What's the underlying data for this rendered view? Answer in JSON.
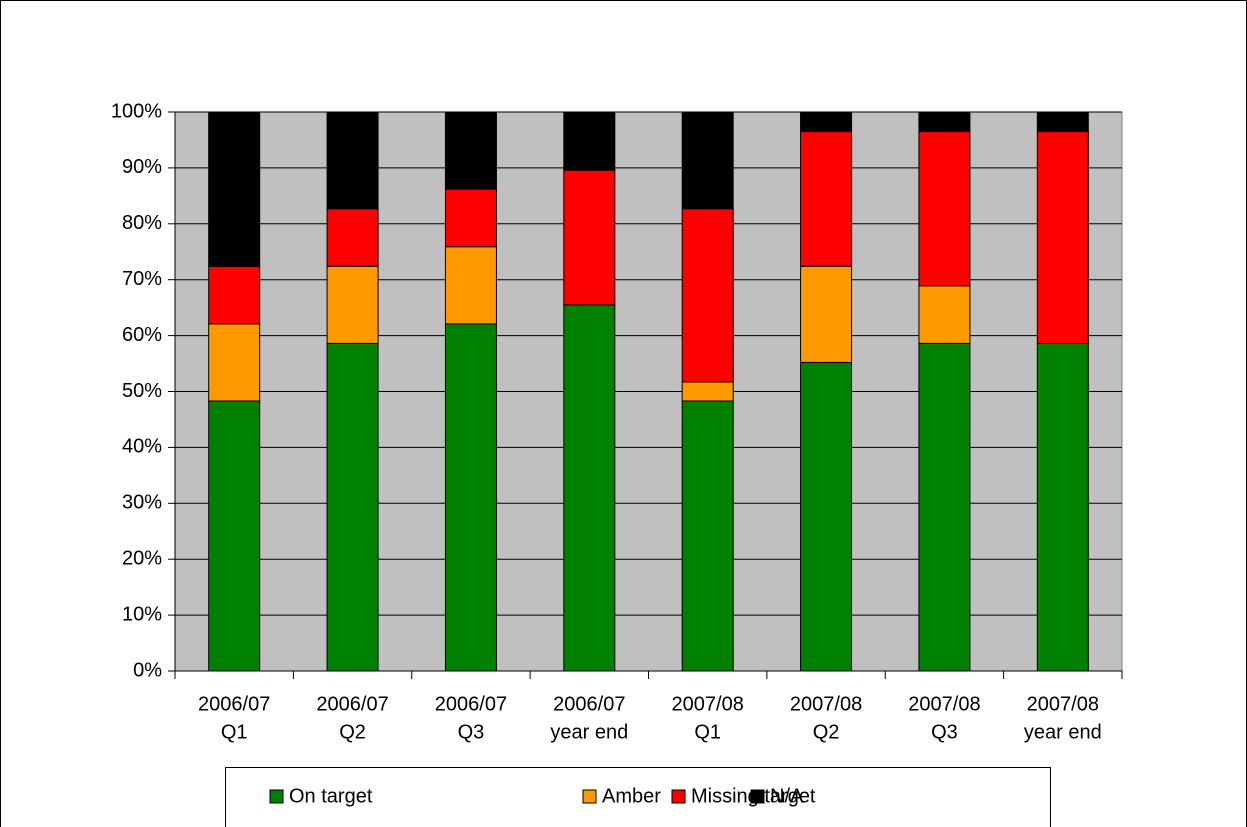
{
  "chart_data": {
    "type": "stacked_bar",
    "categories": [
      [
        "2006/07",
        "Q1"
      ],
      [
        "2006/07",
        "Q2"
      ],
      [
        "2006/07",
        "Q3"
      ],
      [
        "2006/07",
        "year end"
      ],
      [
        "2007/08",
        "Q1"
      ],
      [
        "2007/08",
        "Q2"
      ],
      [
        "2007/08",
        "Q3"
      ],
      [
        "2007/08",
        "year end"
      ]
    ],
    "series": [
      {
        "name": "On target",
        "color": "#008000",
        "values": [
          48.3,
          58.6,
          62.1,
          65.5,
          48.3,
          55.2,
          58.6,
          58.6
        ]
      },
      {
        "name": "Amber",
        "color": "#ff9900",
        "values": [
          13.8,
          13.8,
          13.8,
          0,
          3.4,
          17.2,
          10.3,
          0
        ]
      },
      {
        "name": "Missing target",
        "color": "#ff0000",
        "values": [
          10.3,
          10.3,
          10.3,
          24.1,
          31.0,
          24.1,
          27.6,
          37.9
        ]
      },
      {
        "name": "N/A",
        "color": "#000000",
        "values": [
          27.6,
          17.2,
          13.8,
          10.3,
          17.2,
          3.4,
          3.4,
          3.4
        ]
      }
    ],
    "ylim": [
      0,
      100
    ],
    "yticks": [
      {
        "value": 0,
        "label": "0%"
      },
      {
        "value": 10,
        "label": "10%"
      },
      {
        "value": 20,
        "label": "20%"
      },
      {
        "value": 30,
        "label": "30%"
      },
      {
        "value": 40,
        "label": "40%"
      },
      {
        "value": 50,
        "label": "50%"
      },
      {
        "value": 60,
        "label": "60%"
      },
      {
        "value": 70,
        "label": "70%"
      },
      {
        "value": 80,
        "label": "80%"
      },
      {
        "value": 90,
        "label": "90%"
      },
      {
        "value": 100,
        "label": "100%"
      }
    ],
    "grid": true,
    "plot_background": "#c0c0c0",
    "legend": "bottom"
  }
}
